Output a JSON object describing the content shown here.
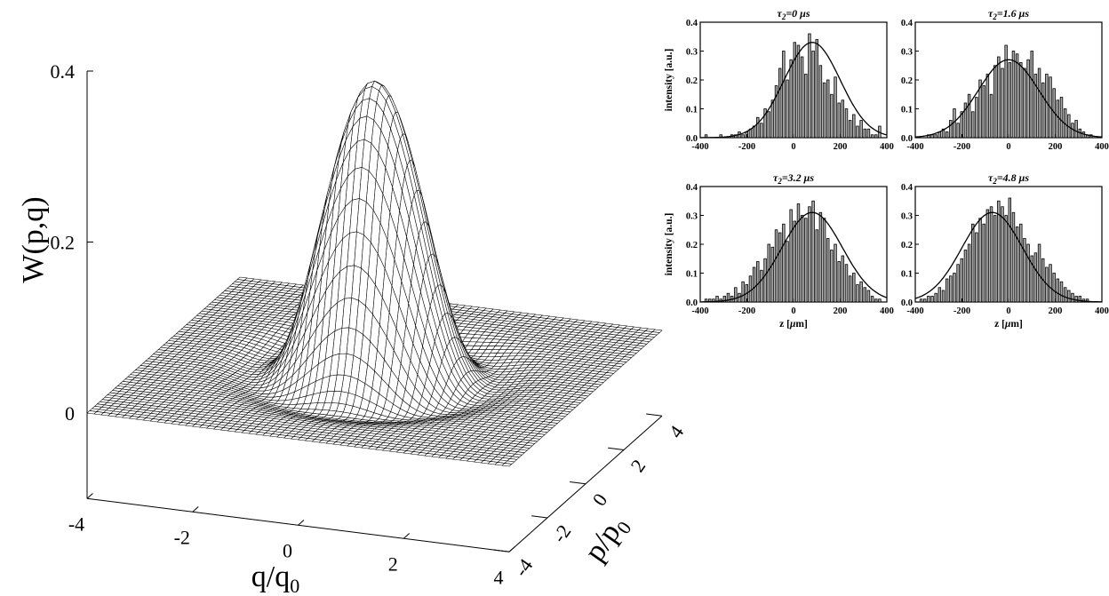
{
  "chart_data": [
    {
      "type": "surface",
      "zlabel": "W(p,q)",
      "xlabel": "q/q₀",
      "ylabel": "p/p₀",
      "xlabel_base": "q/q",
      "xlabel_sub": "0",
      "ylabel_base": "p/p",
      "ylabel_sub": "0",
      "x_ticks": [
        "-4",
        "-2",
        "0",
        "2",
        "4"
      ],
      "y_ticks": [
        "-4",
        "-2",
        "0",
        "2",
        "4"
      ],
      "z_ticks": [
        "0",
        "0.2",
        "0.4"
      ],
      "xlim": [
        -4,
        4
      ],
      "ylim": [
        -4,
        4
      ],
      "zlim": [
        -0.1,
        0.4
      ],
      "surface_peak": 0.34,
      "surface_min": -0.03,
      "grid": "wireframe"
    },
    {
      "type": "bar",
      "title_sym": "τ",
      "title_sub": "2",
      "title_rest": "=0 μs",
      "ylabel": "intensity [a.u.]",
      "xlabel": "",
      "xlim": [
        -400,
        400
      ],
      "ylim": [
        0,
        0.4
      ],
      "x_ticks": [
        "-400",
        "-200",
        "0",
        "200",
        "400"
      ],
      "y_ticks": [
        "0.0",
        "0.1",
        "0.2",
        "0.3",
        "0.4"
      ],
      "fit": {
        "type": "gaussian",
        "amplitude": 0.33,
        "center": 80,
        "sigma": 120
      },
      "values": [
        0.01,
        0,
        0,
        0,
        0.01,
        0,
        0,
        0.01,
        0.01,
        0.02,
        0.01,
        0.02,
        0.03,
        0.04,
        0.07,
        0.05,
        0.1,
        0.09,
        0.13,
        0.18,
        0.24,
        0.3,
        0.2,
        0.27,
        0.33,
        0.32,
        0.28,
        0.22,
        0.36,
        0.3,
        0.34,
        0.25,
        0.19,
        0.2,
        0.15,
        0.21,
        0.12,
        0.13,
        0.1,
        0.06,
        0.08,
        0.04,
        0.06,
        0.03,
        0.03,
        0.01,
        0.01,
        0.04
      ]
    },
    {
      "type": "bar",
      "title_sym": "τ",
      "title_sub": "2",
      "title_rest": "=1.6 μs",
      "ylabel": "",
      "xlabel": "",
      "xlim": [
        -400,
        400
      ],
      "ylim": [
        0,
        0.4
      ],
      "x_ticks": [
        "-400",
        "-200",
        "0",
        "200",
        "400"
      ],
      "y_ticks": [
        "0.0",
        "0.1",
        "0.2",
        "0.3",
        "0.4"
      ],
      "fit": {
        "type": "gaussian",
        "amplitude": 0.27,
        "center": 0,
        "sigma": 130
      },
      "values": [
        0,
        0,
        0.01,
        0.01,
        0.01,
        0.02,
        0.03,
        0.02,
        0.06,
        0.1,
        0.05,
        0.09,
        0.12,
        0.15,
        0.09,
        0.14,
        0.2,
        0.18,
        0.22,
        0.15,
        0.25,
        0.28,
        0.24,
        0.32,
        0.26,
        0.3,
        0.29,
        0.26,
        0.24,
        0.27,
        0.3,
        0.22,
        0.24,
        0.19,
        0.22,
        0.21,
        0.17,
        0.13,
        0.14,
        0.1,
        0.08,
        0.05,
        0.06,
        0.03,
        0.02,
        0.01,
        0.01,
        0.0
      ]
    },
    {
      "type": "bar",
      "title_sym": "τ",
      "title_sub": "2",
      "title_rest": "=3.2 μs",
      "ylabel": "intensity [a.u.]",
      "xlabel": "z [μm]",
      "xlabel_base": "z [",
      "xlabel_mu": "μ",
      "xlabel_end": "m]",
      "xlim": [
        -400,
        400
      ],
      "ylim": [
        0,
        0.4
      ],
      "x_ticks": [
        "-400",
        "-200",
        "0",
        "200",
        "400"
      ],
      "y_ticks": [
        "0.0",
        "0.1",
        "0.2",
        "0.3",
        "0.4"
      ],
      "fit": {
        "type": "gaussian",
        "amplitude": 0.31,
        "center": 80,
        "sigma": 130
      },
      "values": [
        0.01,
        0.01,
        0.01,
        0.02,
        0.01,
        0.02,
        0.03,
        0.02,
        0.05,
        0.03,
        0.07,
        0.06,
        0.09,
        0.12,
        0.14,
        0.11,
        0.15,
        0.2,
        0.19,
        0.25,
        0.24,
        0.27,
        0.21,
        0.32,
        0.28,
        0.34,
        0.3,
        0.29,
        0.33,
        0.35,
        0.25,
        0.31,
        0.29,
        0.22,
        0.18,
        0.2,
        0.14,
        0.16,
        0.13,
        0.09,
        0.1,
        0.06,
        0.07,
        0.05,
        0.04,
        0.02,
        0.01,
        0.01
      ]
    },
    {
      "type": "bar",
      "title_sym": "τ",
      "title_sub": "2",
      "title_rest": "=4.8 μs",
      "ylabel": "",
      "xlabel": "z [μm]",
      "xlabel_base": "z [",
      "xlabel_mu": "μ",
      "xlabel_end": "m]",
      "xlim": [
        -400,
        400
      ],
      "ylim": [
        0,
        0.4
      ],
      "x_ticks": [
        "-400",
        "-200",
        "0",
        "200",
        "400"
      ],
      "y_ticks": [
        "0.0",
        "0.1",
        "0.2",
        "0.3",
        "0.4"
      ],
      "fit": {
        "type": "gaussian",
        "amplitude": 0.31,
        "center": -70,
        "sigma": 130
      },
      "values": [
        0.01,
        0.01,
        0.02,
        0.02,
        0.03,
        0.05,
        0.04,
        0.08,
        0.09,
        0.1,
        0.13,
        0.15,
        0.18,
        0.2,
        0.27,
        0.24,
        0.29,
        0.27,
        0.32,
        0.33,
        0.3,
        0.35,
        0.33,
        0.3,
        0.36,
        0.31,
        0.26,
        0.27,
        0.22,
        0.2,
        0.16,
        0.17,
        0.2,
        0.15,
        0.12,
        0.13,
        0.1,
        0.08,
        0.07,
        0.05,
        0.04,
        0.03,
        0.02,
        0.02,
        0.01,
        0.01,
        0.0,
        0.0
      ]
    }
  ]
}
